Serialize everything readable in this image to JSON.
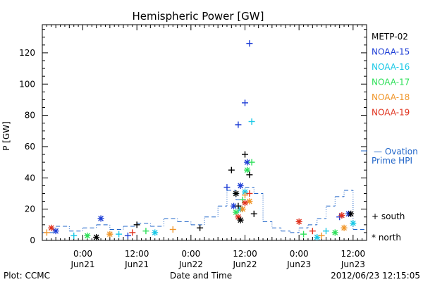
{
  "chart_data": {
    "type": "scatter",
    "title": "Hemispheric Power [GW]",
    "ylabel": "P [GW]",
    "xlabel": "Date and Time",
    "x_range": [
      "2012-06-20 15:00",
      "2012-06-23 15:00"
    ],
    "ylim": [
      0,
      138
    ],
    "y_ticks": [
      0,
      20,
      40,
      60,
      80,
      100,
      120
    ],
    "x_ticks": [
      {
        "time": "2012-06-21 00:00",
        "top": "0:00",
        "bottom": "Jun21"
      },
      {
        "time": "2012-06-21 12:00",
        "top": "12:00",
        "bottom": "Jun21"
      },
      {
        "time": "2012-06-22 00:00",
        "top": "0:00",
        "bottom": "Jun22"
      },
      {
        "time": "2012-06-22 12:00",
        "top": "12:00",
        "bottom": "Jun22"
      },
      {
        "time": "2012-06-23 00:00",
        "top": "0:00",
        "bottom": "Jun23"
      },
      {
        "time": "2012-06-23 12:00",
        "top": "12:00",
        "bottom": "Jun23"
      }
    ],
    "legend": {
      "placement": "right",
      "series": [
        {
          "name": "METP-02",
          "color": "#000000"
        },
        {
          "name": "NOAA-15",
          "color": "#1f3fd6"
        },
        {
          "name": "NOAA-16",
          "color": "#19c8e6"
        },
        {
          "name": "NOAA-17",
          "color": "#2fe05a"
        },
        {
          "name": "NOAA-18",
          "color": "#f0962a"
        },
        {
          "name": "NOAA-19",
          "color": "#e0321e"
        }
      ],
      "ovation_label_1": "— Ovation",
      "ovation_label_2": "Prime HPI",
      "ovation_color": "#1f64c8",
      "south_label": "+ south",
      "north_label": "* north"
    },
    "ovation": [
      [
        "2012-06-20 15:00",
        5
      ],
      [
        "2012-06-20 18:00",
        9
      ],
      [
        "2012-06-20 21:00",
        6
      ],
      [
        "2012-06-21 00:00",
        8
      ],
      [
        "2012-06-21 03:00",
        10
      ],
      [
        "2012-06-21 06:00",
        7
      ],
      [
        "2012-06-21 09:00",
        9
      ],
      [
        "2012-06-21 12:00",
        11
      ],
      [
        "2012-06-21 15:00",
        9
      ],
      [
        "2012-06-21 18:00",
        14
      ],
      [
        "2012-06-21 21:00",
        12
      ],
      [
        "2012-06-22 00:00",
        10
      ],
      [
        "2012-06-22 03:00",
        15
      ],
      [
        "2012-06-22 06:00",
        22
      ],
      [
        "2012-06-22 08:00",
        32
      ],
      [
        "2012-06-22 10:00",
        26
      ],
      [
        "2012-06-22 12:00",
        34
      ],
      [
        "2012-06-22 14:00",
        30
      ],
      [
        "2012-06-22 16:00",
        12
      ],
      [
        "2012-06-22 18:00",
        8
      ],
      [
        "2012-06-22 20:00",
        6
      ],
      [
        "2012-06-22 22:00",
        5
      ],
      [
        "2012-06-23 00:00",
        8
      ],
      [
        "2012-06-23 02:00",
        10
      ],
      [
        "2012-06-23 04:00",
        14
      ],
      [
        "2012-06-23 06:00",
        22
      ],
      [
        "2012-06-23 08:00",
        28
      ],
      [
        "2012-06-23 10:00",
        32
      ],
      [
        "2012-06-23 12:00",
        7
      ]
    ],
    "measurements": [
      {
        "satellite": "NOAA-15",
        "hemisphere": "south",
        "points": [
          [
            "2012-06-22 10:30",
            74
          ],
          [
            "2012-06-22 12:00",
            88
          ],
          [
            "2012-06-22 13:00",
            126
          ],
          [
            "2012-06-22 08:00",
            34
          ],
          [
            "2012-06-21 10:00",
            3
          ],
          [
            "2012-06-23 09:00",
            15
          ]
        ]
      },
      {
        "satellite": "NOAA-15",
        "hemisphere": "north",
        "points": [
          [
            "2012-06-21 04:00",
            14
          ],
          [
            "2012-06-22 12:30",
            50
          ],
          [
            "2012-06-22 11:00",
            35
          ],
          [
            "2012-06-22 09:30",
            22
          ],
          [
            "2012-06-23 11:00",
            17
          ],
          [
            "2012-06-20 18:00",
            6
          ]
        ]
      },
      {
        "satellite": "NOAA-16",
        "hemisphere": "south",
        "points": [
          [
            "2012-06-22 13:30",
            76
          ],
          [
            "2012-06-22 10:00",
            30
          ],
          [
            "2012-06-21 08:00",
            4
          ],
          [
            "2012-06-23 06:00",
            6
          ],
          [
            "2012-06-20 22:00",
            3
          ]
        ]
      },
      {
        "satellite": "NOAA-16",
        "hemisphere": "north",
        "points": [
          [
            "2012-06-22 12:00",
            31
          ],
          [
            "2012-06-22 11:00",
            20
          ],
          [
            "2012-06-21 16:00",
            5
          ],
          [
            "2012-06-23 04:00",
            2
          ],
          [
            "2012-06-23 12:00",
            11
          ]
        ]
      },
      {
        "satellite": "NOAA-17",
        "hemisphere": "south",
        "points": [
          [
            "2012-06-22 13:30",
            50
          ],
          [
            "2012-06-22 11:30",
            26
          ],
          [
            "2012-06-21 14:00",
            6
          ],
          [
            "2012-06-23 01:00",
            4
          ]
        ]
      },
      {
        "satellite": "NOAA-17",
        "hemisphere": "north",
        "points": [
          [
            "2012-06-22 12:30",
            45
          ],
          [
            "2012-06-22 10:00",
            18
          ],
          [
            "2012-06-21 01:00",
            3
          ],
          [
            "2012-06-23 08:00",
            5
          ]
        ]
      },
      {
        "satellite": "NOAA-18",
        "hemisphere": "south",
        "points": [
          [
            "2012-06-22 12:00",
            29
          ],
          [
            "2012-06-21 20:00",
            7
          ],
          [
            "2012-06-20 16:00",
            5
          ],
          [
            "2012-06-23 05:00",
            3
          ]
        ]
      },
      {
        "satellite": "NOAA-18",
        "hemisphere": "north",
        "points": [
          [
            "2012-06-22 13:00",
            25
          ],
          [
            "2012-06-22 11:30",
            20
          ],
          [
            "2012-06-21 06:00",
            4
          ],
          [
            "2012-06-23 10:00",
            8
          ]
        ]
      },
      {
        "satellite": "NOAA-19",
        "hemisphere": "south",
        "points": [
          [
            "2012-06-22 13:00",
            30
          ],
          [
            "2012-06-21 11:00",
            5
          ],
          [
            "2012-06-23 03:00",
            6
          ]
        ]
      },
      {
        "satellite": "NOAA-19",
        "hemisphere": "north",
        "points": [
          [
            "2012-06-22 12:00",
            24
          ],
          [
            "2012-06-22 10:30",
            15
          ],
          [
            "2012-06-23 00:00",
            12
          ],
          [
            "2012-06-23 09:30",
            16
          ],
          [
            "2012-06-20 17:00",
            8
          ]
        ]
      },
      {
        "satellite": "METP-02",
        "hemisphere": "south",
        "points": [
          [
            "2012-06-22 09:00",
            45
          ],
          [
            "2012-06-22 12:00",
            55
          ],
          [
            "2012-06-22 13:00",
            42
          ],
          [
            "2012-06-22 10:30",
            22
          ],
          [
            "2012-06-22 14:00",
            17
          ],
          [
            "2012-06-21 12:00",
            10
          ],
          [
            "2012-06-22 02:00",
            8
          ]
        ]
      },
      {
        "satellite": "METP-02",
        "hemisphere": "north",
        "points": [
          [
            "2012-06-22 10:00",
            30
          ],
          [
            "2012-06-22 11:00",
            13
          ],
          [
            "2012-06-23 11:30",
            17
          ],
          [
            "2012-06-21 03:00",
            2
          ]
        ]
      }
    ]
  },
  "footer": {
    "left": "Plot: CCMC",
    "center": "Date and Time",
    "right": "2012/06/23 12:15:05"
  }
}
